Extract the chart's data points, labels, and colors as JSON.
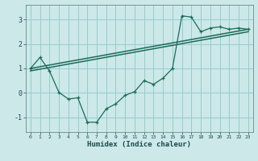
{
  "title": "",
  "xlabel": "Humidex (Indice chaleur)",
  "ylabel": "",
  "bg_color": "#cce8e8",
  "grid_color": "#99cccc",
  "line_color": "#1a6b5a",
  "xlim": [
    -0.5,
    23.5
  ],
  "ylim": [
    -1.6,
    3.6
  ],
  "yticks": [
    -1,
    0,
    1,
    2,
    3
  ],
  "xticks": [
    0,
    1,
    2,
    3,
    4,
    5,
    6,
    7,
    8,
    9,
    10,
    11,
    12,
    13,
    14,
    15,
    16,
    17,
    18,
    19,
    20,
    21,
    22,
    23
  ],
  "line1_x": [
    0,
    1,
    2,
    3,
    4,
    5,
    6,
    7,
    8,
    9,
    10,
    11,
    12,
    13,
    14,
    15,
    16,
    17,
    18,
    19,
    20,
    21,
    22,
    23
  ],
  "line1_y": [
    1.0,
    1.45,
    0.9,
    0.02,
    -0.25,
    -0.2,
    -1.2,
    -1.2,
    -0.65,
    -0.45,
    -0.1,
    0.05,
    0.5,
    0.35,
    0.6,
    1.0,
    3.15,
    3.1,
    2.5,
    2.65,
    2.7,
    2.6,
    2.65,
    2.6
  ],
  "line2_x": [
    0,
    23
  ],
  "line2_y": [
    1.0,
    2.6
  ],
  "line3_x": [
    0,
    23
  ],
  "line3_y": [
    0.9,
    2.5
  ]
}
